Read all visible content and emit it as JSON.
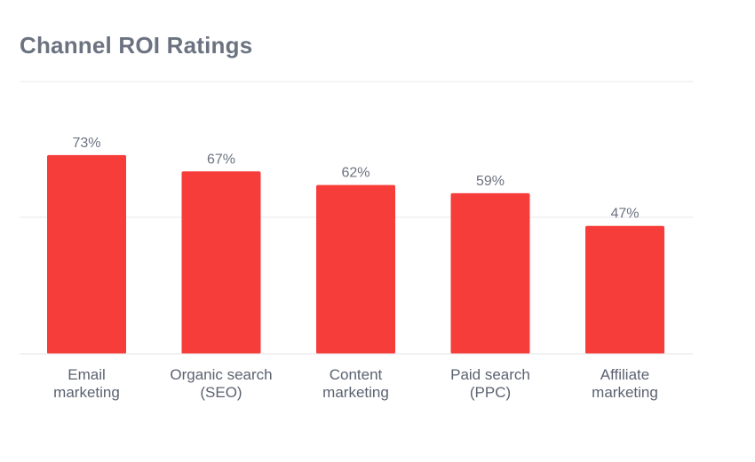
{
  "chart_data": {
    "type": "bar",
    "title": "Channel ROI Ratings",
    "categories": [
      [
        "Email",
        "marketing"
      ],
      [
        "Organic search",
        "(SEO)"
      ],
      [
        "Content",
        "marketing"
      ],
      [
        "Paid search",
        "(PPC)"
      ],
      [
        "Affiliate",
        "marketing"
      ]
    ],
    "values": [
      73,
      67,
      62,
      59,
      47
    ],
    "value_labels": [
      "73%",
      "67%",
      "62%",
      "59%",
      "47%"
    ],
    "unit": "%",
    "ylim": [
      0,
      100
    ],
    "grid": true,
    "legend": "none",
    "bar_color": "#f73d3a"
  }
}
